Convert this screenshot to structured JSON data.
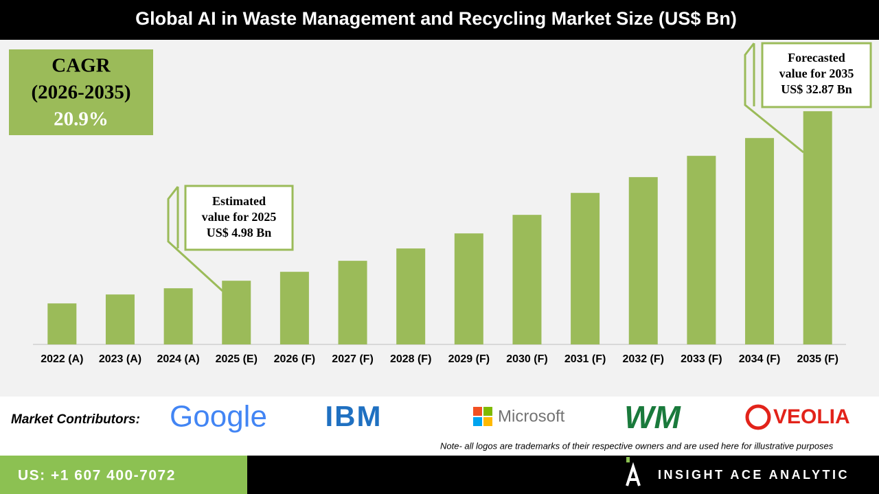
{
  "chart_data": {
    "type": "bar",
    "title": "Global AI in Waste Management and Recycling Market Size (US$ Bn)",
    "categories": [
      "2022 (A)",
      "2023 (A)",
      "2024 (A)",
      "2025 (E)",
      "2026 (F)",
      "2027 (F)",
      "2028 (F)",
      "2029 (F)",
      "2030 (F)",
      "2031 (F)",
      "2032 (F)",
      "2033 (F)",
      "2034 (F)",
      "2035 (F)"
    ],
    "values": [
      1.25,
      2.72,
      3.74,
      4.98,
      6.45,
      8.26,
      10.29,
      12.77,
      15.82,
      19.43,
      22.03,
      25.53,
      28.46,
      32.87
    ],
    "color": "#9bbb59",
    "ylim": [
      -5.5,
      44.4
    ],
    "cagr": {
      "label": "CAGR",
      "period": "(2026-2035)",
      "value": "20.9%"
    },
    "annotations": [
      {
        "lines": [
          "Estimated",
          "value for 2025",
          "US$ 4.98 Bn"
        ]
      },
      {
        "lines": [
          "Forecasted",
          "value for 2035",
          "US$ 32.87 Bn"
        ]
      }
    ]
  },
  "footer": {
    "contributors_label": "Market Contributors:",
    "contributors": [
      "Google",
      "IBM",
      "Microsoft",
      "WM",
      "VEOLIA"
    ],
    "note": "Note- all logos are trademarks of their respective owners and are used here for illustrative purposes",
    "phone": "US: +1 607 400-7072",
    "brand": "INSIGHT ACE ANALYTIC"
  }
}
